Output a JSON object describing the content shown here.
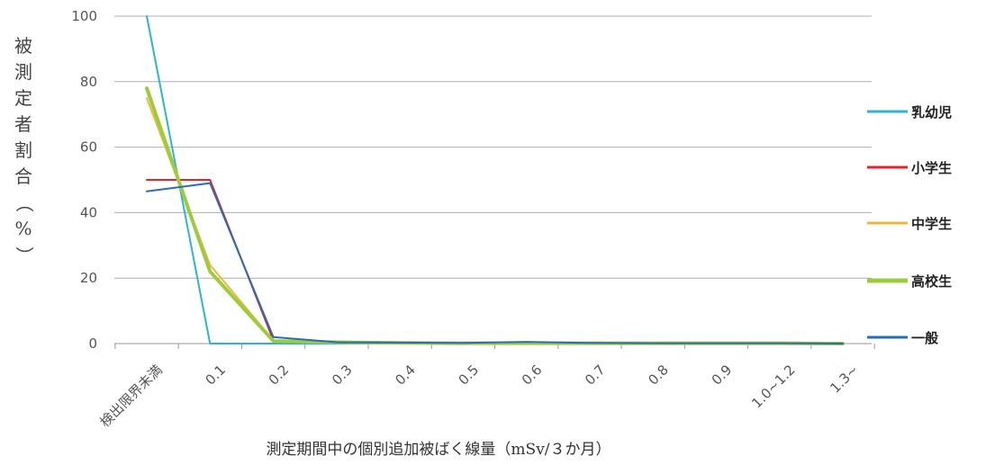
{
  "chart_data": {
    "type": "line",
    "title": "",
    "ylabel": "被測定者割合（%）",
    "xlabel": "測定期間中の個別追加被ばく線量（mSv/３か月）",
    "ylim": [
      0,
      100
    ],
    "y_ticks": [
      "0",
      "20",
      "40",
      "60",
      "80",
      "100"
    ],
    "categories": [
      "検出限界未満",
      "0.1",
      "0.2",
      "0.3",
      "0.4",
      "0.5",
      "0.6",
      "0.7",
      "0.8",
      "0.9",
      "1.0~1.2",
      "1.3~"
    ],
    "grid": "horizontal",
    "legend_position": "right",
    "series": [
      {
        "name": "乳幼児",
        "color": "#2bb5d4",
        "width": 2,
        "values": [
          100,
          0,
          0,
          0,
          0,
          0,
          0,
          0,
          0,
          0,
          0,
          0
        ]
      },
      {
        "name": "小学生",
        "color": "#e8232a",
        "width": 2,
        "values": [
          50,
          50,
          1,
          0.3,
          0.2,
          0.1,
          0.2,
          0.1,
          0.1,
          0.1,
          0.1,
          0
        ]
      },
      {
        "name": "中学生",
        "color": "#f2b63a",
        "width": 2,
        "values": [
          75,
          24,
          1,
          0.4,
          0.2,
          0.1,
          0.1,
          0.1,
          0.1,
          0.1,
          0.1,
          0
        ]
      },
      {
        "name": "高校生",
        "color": "#9ccc3c",
        "width": 4,
        "values": [
          78,
          22,
          0.8,
          0.4,
          0.2,
          0.1,
          0.1,
          0.1,
          0.1,
          0.1,
          0.1,
          0
        ]
      },
      {
        "name": "一般",
        "color": "#2a6cb5",
        "width": 2,
        "values": [
          46.5,
          49,
          2,
          0.4,
          0.3,
          0.2,
          0.5,
          0.2,
          0.1,
          0.1,
          0.1,
          0
        ]
      }
    ]
  }
}
